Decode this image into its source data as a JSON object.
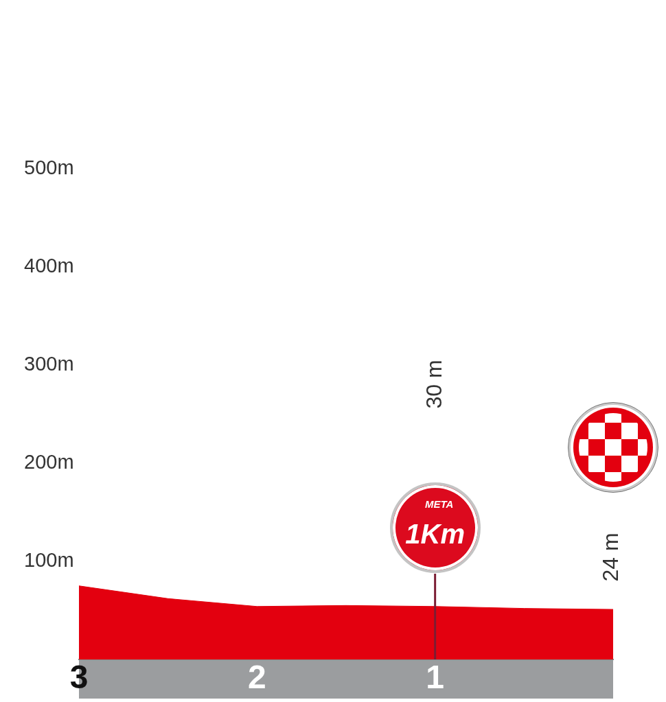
{
  "chart_data": {
    "type": "area",
    "x": [
      3,
      2.5,
      2,
      1.5,
      1,
      0.5,
      0
    ],
    "values": [
      75,
      62,
      54,
      55,
      54,
      52,
      51
    ],
    "color": "#e3000f",
    "xlim": [
      3,
      0
    ],
    "xticks": [
      3,
      2,
      1
    ],
    "ylim": [
      0,
      500
    ],
    "yticks": [
      {
        "value": 100,
        "label": "100m"
      },
      {
        "value": 200,
        "label": "200m"
      },
      {
        "value": 300,
        "label": "300m"
      },
      {
        "value": 400,
        "label": "400m"
      },
      {
        "value": 500,
        "label": "500m"
      }
    ],
    "ref_lines": [
      {
        "axis": "x",
        "value": 1,
        "color": "#7b1d33"
      }
    ],
    "annotations": [
      "30 m",
      "24 m",
      "META",
      "1Km"
    ]
  }
}
